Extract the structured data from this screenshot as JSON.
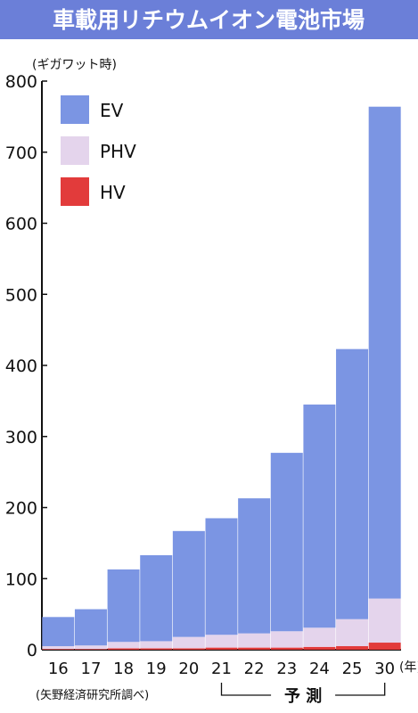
{
  "header": {
    "title": "車載用リチウムイオン電池市場"
  },
  "chart_data": {
    "type": "bar",
    "stacked": true,
    "title": "車載用リチウムイオン電池市場",
    "ylabel": "(ギガワット時)",
    "xunit": "(年)",
    "ylim": [
      0,
      800
    ],
    "yticks": [
      0,
      100,
      200,
      300,
      400,
      500,
      600,
      700,
      800
    ],
    "categories": [
      "16",
      "17",
      "18",
      "19",
      "20",
      "21",
      "22",
      "23",
      "24",
      "25",
      "30"
    ],
    "series": [
      {
        "name": "HV",
        "color": "#e23b3b",
        "values": [
          1,
          1,
          2,
          2,
          2,
          3,
          3,
          3,
          4,
          5,
          10
        ]
      },
      {
        "name": "PHV",
        "color": "#e4d4ec",
        "values": [
          4,
          5,
          9,
          10,
          16,
          18,
          20,
          23,
          27,
          38,
          62
        ]
      },
      {
        "name": "EV",
        "color": "#7b95e3",
        "values": [
          41,
          51,
          102,
          121,
          149,
          164,
          190,
          251,
          314,
          380,
          692
        ]
      }
    ],
    "legend": {
      "position": "top-left",
      "order": [
        "EV",
        "PHV",
        "HV"
      ]
    },
    "source": "(矢野経済研究所調べ)",
    "forecast": {
      "label": "予 測",
      "from": "21",
      "to": "30"
    },
    "grid": false
  }
}
